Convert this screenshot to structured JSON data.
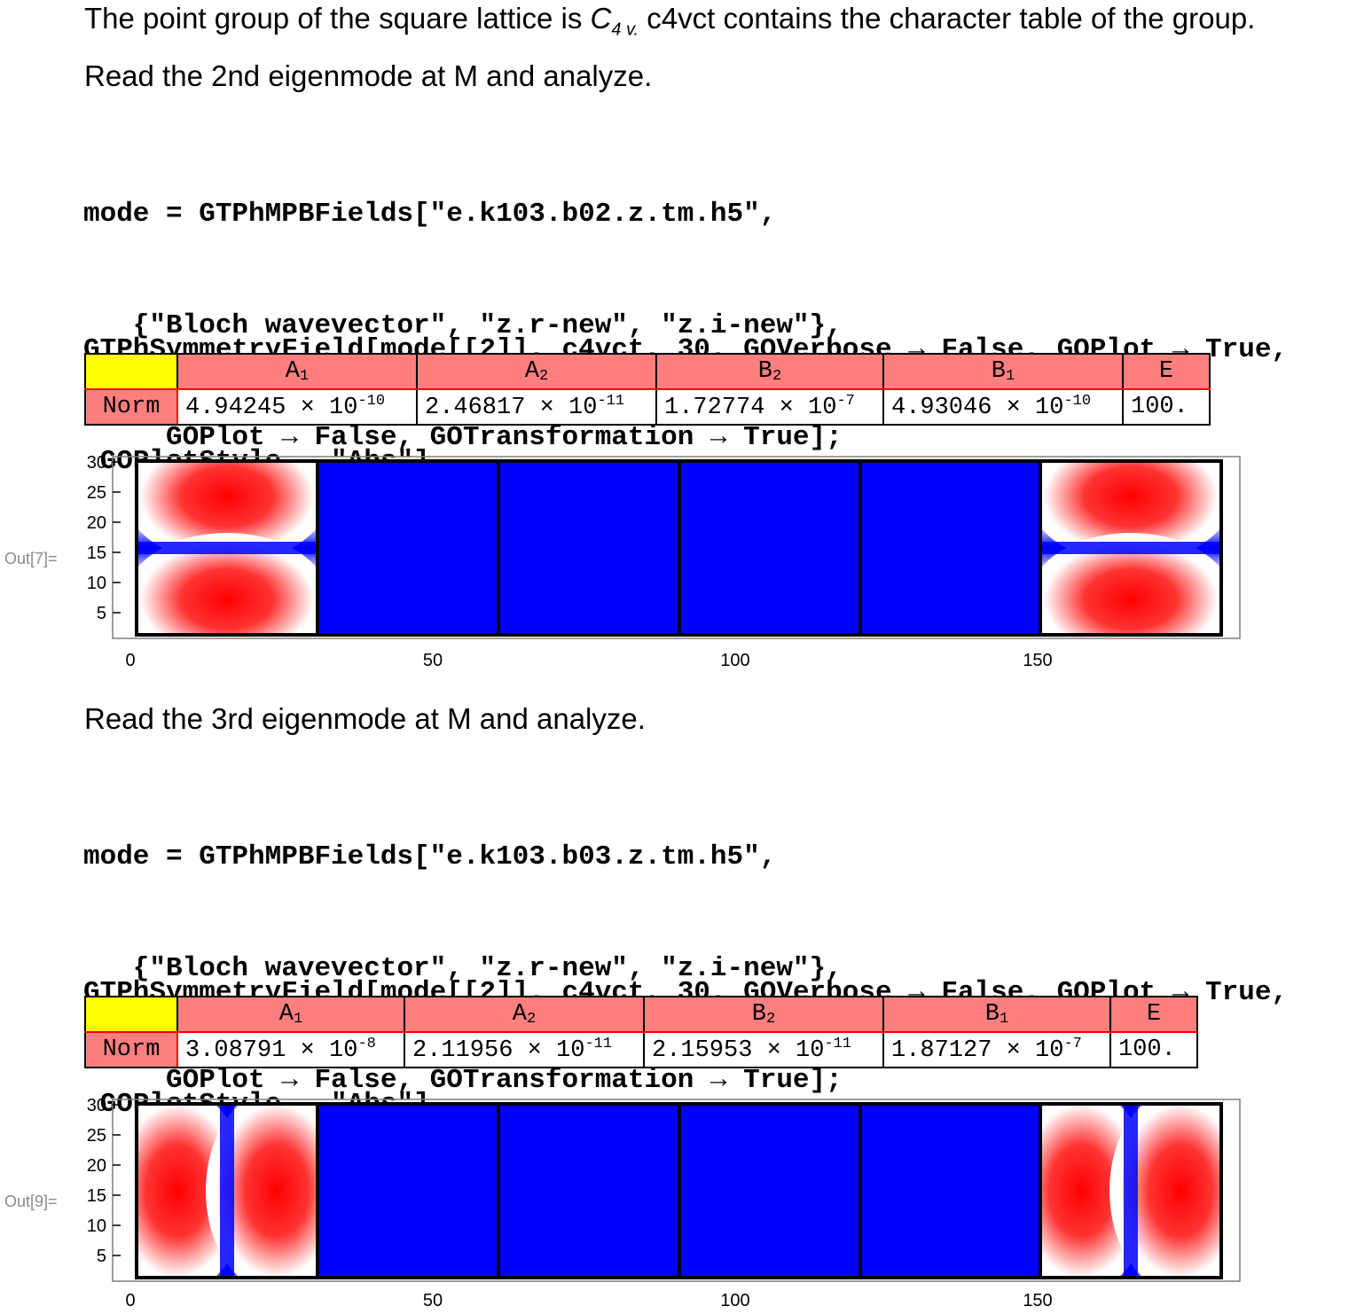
{
  "intro": {
    "line1_a": "The point group of the square lattice is ",
    "line1_sym": "C",
    "line1_sub": "4 v.",
    "line1_b": " c4vct contains the character table of the group."
  },
  "section2": {
    "heading": "Read the 2nd eigenmode at M and analyze.",
    "code1": [
      "mode = GTPhMPBFields[\"e.k103.b02.z.tm.h5\",",
      "   {\"Bloch wavevector\", \"z.r-new\", \"z.i-new\"},",
      "     GOPlot → False, GOTransformation → True];"
    ],
    "code2": [
      "GTPhSymmetryField[mode[[2]], c4vct, 30, GOVerbose → False, GOPlot → True,",
      " GOPlotStyle → \"Abs\"]"
    ],
    "out_label": "Out[7]=",
    "table": {
      "headers": [
        {
          "base": "A",
          "sub": "1"
        },
        {
          "base": "A",
          "sub": "2"
        },
        {
          "base": "B",
          "sub": "2"
        },
        {
          "base": "B",
          "sub": "1"
        },
        {
          "base": "E",
          "sub": ""
        }
      ],
      "row_label": "Norm",
      "values": [
        {
          "mant": "4.94245",
          "exp": "-10"
        },
        {
          "mant": "2.46817",
          "exp": "-11"
        },
        {
          "mant": "1.72774",
          "exp": "-7"
        },
        {
          "mant": "4.93046",
          "exp": "-10"
        },
        {
          "mant": "100.",
          "exp": ""
        }
      ]
    },
    "plot": {
      "x_ticks": [
        "0",
        "50",
        "100",
        "150"
      ],
      "y_ticks": [
        "5",
        "10",
        "15",
        "20",
        "25",
        "30"
      ],
      "pattern": "vertical-split"
    }
  },
  "section3": {
    "heading": "Read the 3rd eigenmode at M and analyze.",
    "code1": [
      "mode = GTPhMPBFields[\"e.k103.b03.z.tm.h5\",",
      "   {\"Bloch wavevector\", \"z.r-new\", \"z.i-new\"},",
      "     GOPlot → False, GOTransformation → True];"
    ],
    "code2": [
      "GTPhSymmetryField[mode[[2]], c4vct, 30, GOVerbose → False, GOPlot → True,",
      " GOPlotStyle → \"Abs\"]"
    ],
    "out_label": "Out[9]=",
    "table": {
      "headers": [
        {
          "base": "A",
          "sub": "1"
        },
        {
          "base": "A",
          "sub": "2"
        },
        {
          "base": "B",
          "sub": "2"
        },
        {
          "base": "B",
          "sub": "1"
        },
        {
          "base": "E",
          "sub": ""
        }
      ],
      "row_label": "Norm",
      "values": [
        {
          "mant": "3.08791",
          "exp": "-8"
        },
        {
          "mant": "2.11956",
          "exp": "-11"
        },
        {
          "mant": "2.15953",
          "exp": "-11"
        },
        {
          "mant": "1.87127",
          "exp": "-7"
        },
        {
          "mant": "100.",
          "exp": ""
        }
      ]
    },
    "plot": {
      "x_ticks": [
        "0",
        "50",
        "100",
        "150"
      ],
      "y_ticks": [
        "5",
        "10",
        "15",
        "20",
        "25",
        "30"
      ],
      "pattern": "horizontal-split"
    }
  },
  "colors": {
    "table_header": "#ff7f7f",
    "corner": "#ffff00",
    "field_red": "#ff0000",
    "field_blue": "#0000ff"
  }
}
